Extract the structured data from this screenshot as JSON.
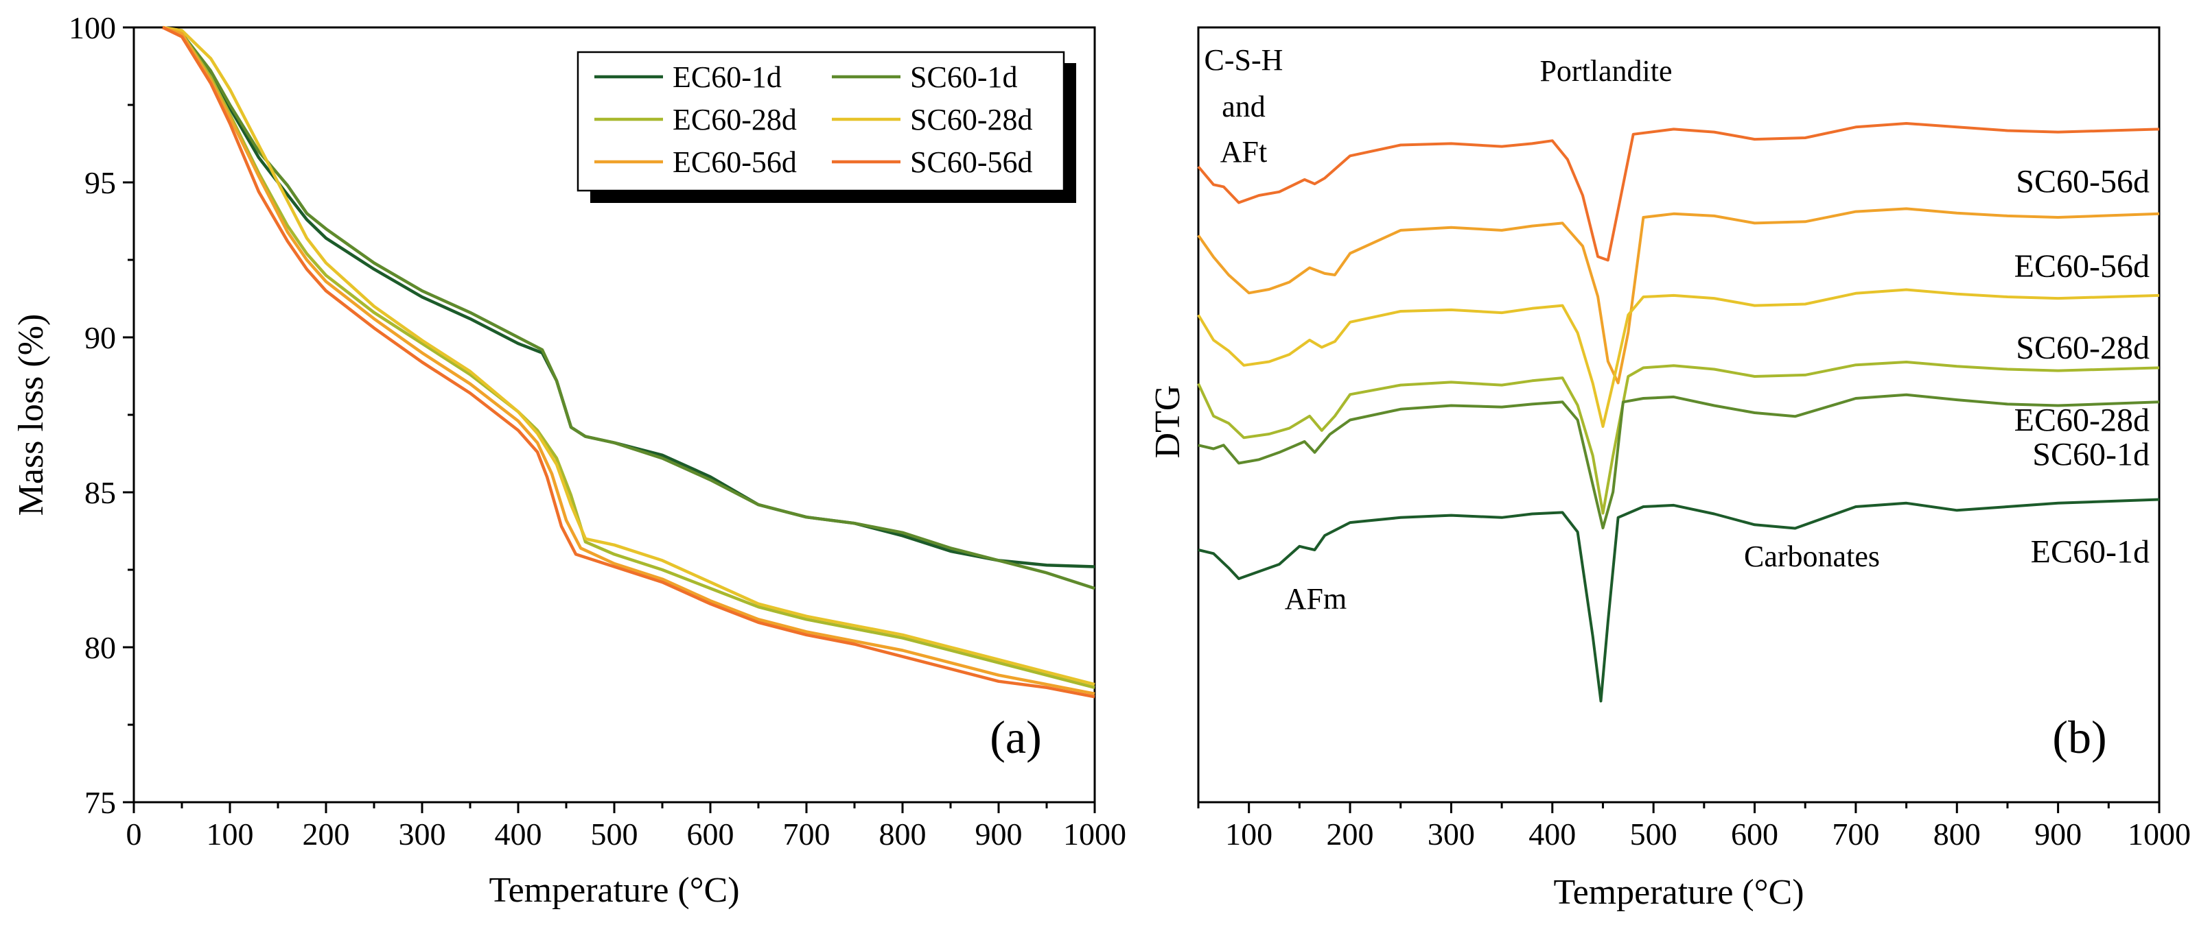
{
  "chart_data": [
    {
      "panel": "(a)",
      "type": "line",
      "xlabel": "Temperature (°C)",
      "ylabel": "Mass loss (%)",
      "xlim": [
        0,
        1000
      ],
      "ylim": [
        75,
        100
      ],
      "xticks": [
        0,
        100,
        200,
        300,
        400,
        500,
        600,
        700,
        800,
        900,
        1000
      ],
      "yticks": [
        75,
        80,
        85,
        90,
        95,
        100
      ],
      "legend_position": "top-right",
      "series": [
        {
          "name": "EC60-1d",
          "color": "#1c5b2a",
          "x": [
            30,
            50,
            80,
            100,
            130,
            160,
            180,
            200,
            250,
            300,
            350,
            400,
            425,
            440,
            455,
            470,
            500,
            550,
            600,
            650,
            700,
            750,
            800,
            850,
            900,
            950,
            1000
          ],
          "y": [
            100,
            99.8,
            98.5,
            97.4,
            95.8,
            94.6,
            93.8,
            93.2,
            92.2,
            91.3,
            90.6,
            89.8,
            89.5,
            88.6,
            87.1,
            86.8,
            86.6,
            86.2,
            85.5,
            84.6,
            84.2,
            84.0,
            83.6,
            83.1,
            82.8,
            82.65,
            82.6
          ]
        },
        {
          "name": "SC60-1d",
          "color": "#5f8a2c",
          "x": [
            30,
            50,
            80,
            100,
            130,
            160,
            180,
            200,
            250,
            300,
            350,
            400,
            425,
            440,
            455,
            470,
            500,
            550,
            600,
            650,
            700,
            750,
            800,
            850,
            900,
            950,
            1000
          ],
          "y": [
            100,
            99.8,
            98.6,
            97.5,
            96.0,
            94.9,
            94.0,
            93.5,
            92.4,
            91.5,
            90.8,
            90.0,
            89.6,
            88.6,
            87.1,
            86.8,
            86.6,
            86.1,
            85.4,
            84.6,
            84.2,
            84.0,
            83.7,
            83.2,
            82.8,
            82.4,
            81.9
          ]
        },
        {
          "name": "EC60-28d",
          "color": "#a8b82e",
          "x": [
            30,
            50,
            80,
            100,
            130,
            160,
            180,
            200,
            250,
            300,
            350,
            400,
            420,
            440,
            455,
            470,
            500,
            550,
            600,
            650,
            700,
            750,
            800,
            850,
            900,
            950,
            1000
          ],
          "y": [
            100,
            99.8,
            98.4,
            97.2,
            95.3,
            93.6,
            92.7,
            92.0,
            90.8,
            89.8,
            88.8,
            87.6,
            87.0,
            86.1,
            84.9,
            83.4,
            83.0,
            82.5,
            81.9,
            81.3,
            80.9,
            80.6,
            80.3,
            79.9,
            79.5,
            79.1,
            78.7
          ]
        },
        {
          "name": "SC60-28d",
          "color": "#e7c32a",
          "x": [
            30,
            50,
            80,
            100,
            130,
            160,
            180,
            200,
            250,
            300,
            350,
            400,
            420,
            440,
            455,
            470,
            500,
            550,
            600,
            650,
            700,
            750,
            800,
            850,
            900,
            950,
            1000
          ],
          "y": [
            100,
            99.9,
            99.0,
            98.0,
            96.2,
            94.4,
            93.2,
            92.4,
            91.0,
            89.9,
            88.9,
            87.6,
            86.9,
            85.9,
            84.6,
            83.5,
            83.3,
            82.8,
            82.1,
            81.4,
            81.0,
            80.7,
            80.4,
            80.0,
            79.6,
            79.2,
            78.8
          ]
        },
        {
          "name": "EC60-56d",
          "color": "#f0a22a",
          "x": [
            30,
            50,
            80,
            100,
            130,
            160,
            180,
            200,
            250,
            300,
            350,
            400,
            420,
            435,
            450,
            465,
            500,
            550,
            600,
            650,
            700,
            750,
            800,
            850,
            900,
            950,
            1000
          ],
          "y": [
            100,
            99.8,
            98.3,
            97.1,
            95.2,
            93.4,
            92.5,
            91.8,
            90.6,
            89.5,
            88.5,
            87.3,
            86.6,
            85.6,
            84.1,
            83.2,
            82.7,
            82.2,
            81.5,
            80.9,
            80.5,
            80.2,
            79.9,
            79.5,
            79.1,
            78.8,
            78.5
          ]
        },
        {
          "name": "SC60-56d",
          "color": "#ef6f2a",
          "x": [
            30,
            50,
            80,
            100,
            130,
            160,
            180,
            200,
            250,
            300,
            350,
            400,
            420,
            430,
            445,
            460,
            500,
            550,
            600,
            650,
            700,
            750,
            800,
            850,
            900,
            950,
            1000
          ],
          "y": [
            100,
            99.7,
            98.2,
            96.9,
            94.7,
            93.1,
            92.2,
            91.5,
            90.3,
            89.2,
            88.2,
            87.0,
            86.3,
            85.5,
            83.9,
            83.0,
            82.6,
            82.1,
            81.4,
            80.8,
            80.4,
            80.1,
            79.7,
            79.3,
            78.9,
            78.7,
            78.4
          ]
        }
      ]
    },
    {
      "panel": "(b)",
      "type": "line",
      "xlabel": "Temperature (°C)",
      "ylabel": "DTG",
      "xlim": [
        50,
        1000
      ],
      "xticks": [
        100,
        200,
        300,
        400,
        500,
        600,
        700,
        800,
        900,
        1000
      ],
      "annotations": [
        "C-S-H",
        "and",
        "AFt",
        "Portlandite",
        "AFm",
        "Carbonates"
      ],
      "series": [
        {
          "name": "SC60-56d",
          "color": "#ef6f2a",
          "offset": 5,
          "x": [
            50,
            65,
            75,
            90,
            110,
            130,
            155,
            165,
            175,
            200,
            250,
            300,
            350,
            380,
            400,
            415,
            430,
            445,
            455,
            465,
            480,
            520,
            560,
            600,
            650,
            700,
            750,
            800,
            850,
            900,
            1000
          ],
          "y": [
            0.4,
            0.15,
            0.12,
            -0.1,
            0.0,
            0.05,
            0.22,
            0.16,
            0.24,
            0.55,
            0.7,
            0.72,
            0.68,
            0.72,
            0.76,
            0.5,
            0.0,
            -0.85,
            -0.9,
            -0.2,
            0.85,
            0.92,
            0.88,
            0.78,
            0.8,
            0.95,
            1.0,
            0.95,
            0.9,
            0.88,
            0.92
          ]
        },
        {
          "name": "EC60-56d",
          "color": "#f0a22a",
          "offset": 4,
          "x": [
            50,
            65,
            80,
            100,
            120,
            140,
            160,
            175,
            185,
            200,
            250,
            300,
            350,
            380,
            410,
            430,
            445,
            455,
            465,
            475,
            490,
            520,
            560,
            600,
            650,
            700,
            750,
            800,
            850,
            900,
            1000
          ],
          "y": [
            0.55,
            0.25,
            0.0,
            -0.25,
            -0.2,
            -0.1,
            0.1,
            0.02,
            0.0,
            0.3,
            0.62,
            0.66,
            0.62,
            0.68,
            0.72,
            0.4,
            -0.3,
            -1.2,
            -1.5,
            -0.8,
            0.8,
            0.85,
            0.82,
            0.72,
            0.74,
            0.88,
            0.92,
            0.86,
            0.82,
            0.8,
            0.85
          ]
        },
        {
          "name": "SC60-28d",
          "color": "#e7c32a",
          "offset": 3,
          "x": [
            50,
            65,
            80,
            95,
            120,
            140,
            160,
            172,
            185,
            200,
            250,
            300,
            350,
            380,
            410,
            425,
            440,
            450,
            460,
            475,
            490,
            520,
            560,
            600,
            650,
            700,
            750,
            800,
            850,
            900,
            1000
          ],
          "y": [
            0.55,
            0.2,
            0.05,
            -0.15,
            -0.1,
            0.0,
            0.2,
            0.1,
            0.18,
            0.45,
            0.6,
            0.62,
            0.58,
            0.64,
            0.68,
            0.3,
            -0.4,
            -1.0,
            -0.4,
            0.55,
            0.8,
            0.82,
            0.78,
            0.68,
            0.7,
            0.85,
            0.9,
            0.84,
            0.8,
            0.78,
            0.82
          ]
        },
        {
          "name": "EC60-28d",
          "color": "#a8b82e",
          "offset": 2,
          "x": [
            50,
            65,
            80,
            95,
            120,
            140,
            160,
            172,
            185,
            200,
            250,
            300,
            350,
            380,
            410,
            425,
            440,
            450,
            460,
            475,
            490,
            520,
            560,
            600,
            650,
            700,
            750,
            800,
            850,
            900,
            1000
          ],
          "y": [
            0.7,
            0.25,
            0.15,
            -0.05,
            0.0,
            0.08,
            0.25,
            0.05,
            0.25,
            0.55,
            0.68,
            0.72,
            0.68,
            0.74,
            0.78,
            0.4,
            -0.3,
            -1.1,
            -0.3,
            0.8,
            0.92,
            0.95,
            0.9,
            0.8,
            0.82,
            0.96,
            1.0,
            0.94,
            0.9,
            0.88,
            0.92
          ]
        },
        {
          "name": "SC60-1d",
          "color": "#5f8a2c",
          "offset": 1,
          "x": [
            50,
            65,
            75,
            90,
            110,
            130,
            155,
            165,
            180,
            200,
            250,
            300,
            350,
            380,
            410,
            425,
            440,
            450,
            460,
            470,
            490,
            520,
            560,
            600,
            640,
            700,
            750,
            800,
            850,
            900,
            1000
          ],
          "y": [
            0.95,
            0.9,
            0.95,
            0.7,
            0.75,
            0.85,
            1.0,
            0.85,
            1.1,
            1.3,
            1.45,
            1.5,
            1.48,
            1.52,
            1.55,
            1.3,
            0.4,
            -0.2,
            0.3,
            1.55,
            1.6,
            1.62,
            1.5,
            1.4,
            1.35,
            1.6,
            1.65,
            1.58,
            1.52,
            1.5,
            1.55
          ]
        },
        {
          "name": "EC60-1d",
          "color": "#1c5b2a",
          "offset": 0,
          "x": [
            50,
            65,
            80,
            90,
            110,
            130,
            150,
            165,
            175,
            200,
            250,
            300,
            350,
            380,
            410,
            425,
            440,
            448,
            455,
            465,
            490,
            520,
            560,
            600,
            640,
            700,
            750,
            800,
            850,
            900,
            1000
          ],
          "y": [
            0.6,
            0.55,
            0.35,
            0.2,
            0.3,
            0.4,
            0.65,
            0.6,
            0.8,
            0.98,
            1.05,
            1.08,
            1.05,
            1.1,
            1.12,
            0.85,
            -0.6,
            -1.5,
            -0.4,
            1.05,
            1.2,
            1.22,
            1.1,
            0.95,
            0.9,
            1.2,
            1.25,
            1.15,
            1.2,
            1.25,
            1.3
          ]
        }
      ]
    }
  ]
}
